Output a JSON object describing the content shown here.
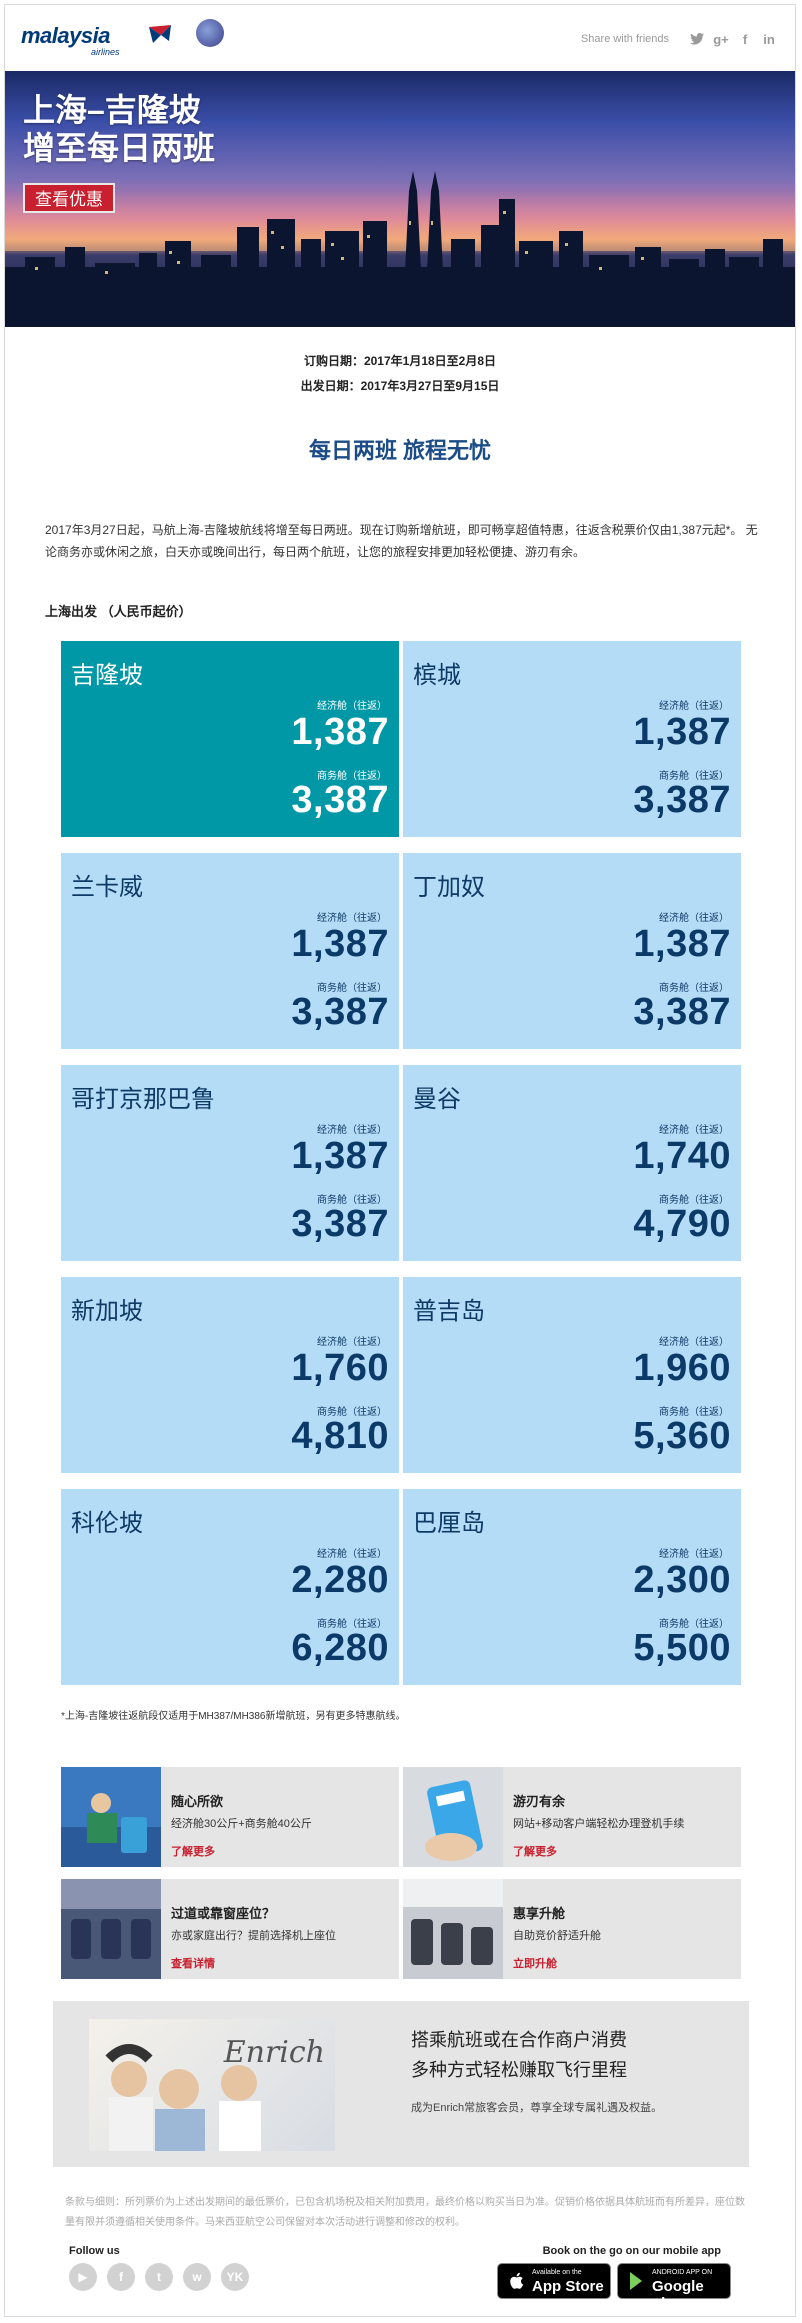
{
  "header": {
    "logo_text": "malaysia",
    "logo_sub": "airlines",
    "share_label": "Share with friends",
    "social_share": [
      "twitter-icon",
      "google-plus-icon",
      "facebook-icon",
      "linkedin-icon"
    ]
  },
  "hero": {
    "title_line1": "上海–吉隆坡",
    "title_line2": "增至每日两班",
    "cta_label": "查看优惠"
  },
  "dates": {
    "booking": "订购日期：2017年1月18日至2月8日",
    "travel": "出发日期：2017年3月27日至9月15日"
  },
  "tagline": "每日两班 旅程无忧",
  "intro": "2017年3月27日起，马航上海-吉隆坡航线将增至每日两班。现在订购新增航班，即可畅享超值特惠，往返含税票价仅由1,387元起*。 无论商务亦或休闲之旅，白天亦或晚间出行，每日两个航班，让您的旅程安排更加轻松便捷、游刃有余。",
  "origin": "上海出发 （人民币起价）",
  "fare_labels": {
    "economy": "经济舱（往返）",
    "business": "商务舱（往返）"
  },
  "fares": [
    {
      "city": "吉隆坡",
      "economy": "1,387",
      "business": "3,387",
      "highlight": true
    },
    {
      "city": "槟城",
      "economy": "1,387",
      "business": "3,387",
      "highlight": false
    },
    {
      "city": "兰卡威",
      "economy": "1,387",
      "business": "3,387",
      "highlight": false
    },
    {
      "city": "丁加奴",
      "economy": "1,387",
      "business": "3,387",
      "highlight": false
    },
    {
      "city": "哥打京那巴鲁",
      "economy": "1,387",
      "business": "3,387",
      "highlight": false
    },
    {
      "city": "曼谷",
      "economy": "1,740",
      "business": "4,790",
      "highlight": false
    },
    {
      "city": "新加坡",
      "economy": "1,760",
      "business": "4,810",
      "highlight": false
    },
    {
      "city": "普吉岛",
      "economy": "1,960",
      "business": "5,360",
      "highlight": false
    },
    {
      "city": "科伦坡",
      "economy": "2,280",
      "business": "6,280",
      "highlight": false
    },
    {
      "city": "巴厘岛",
      "economy": "2,300",
      "business": "5,500",
      "highlight": false
    }
  ],
  "footnote": "*上海-吉隆坡往返航段仅适用于MH387/MH386新增航班，另有更多特惠航线。",
  "services": [
    {
      "title": "随心所欲",
      "desc": "经济舱30公斤+商务舱40公斤",
      "link": "了解更多"
    },
    {
      "title": "游刃有余",
      "desc": "网站+移动客户端轻松办理登机手续",
      "link": "了解更多"
    },
    {
      "title": "过道或靠窗座位？",
      "desc": "亦或家庭出行？提前选择机上座位",
      "link": "查看详情"
    },
    {
      "title": "惠享升舱",
      "desc": "自助竞价舒适升舱",
      "link": "立即升舱"
    }
  ],
  "enrich": {
    "brand": "Enrich",
    "headline1": "搭乘航班或在合作商户消费",
    "headline2": "多种方式轻松赚取飞行里程",
    "sub": "成为Enrich常旅客会员，尊享全球专属礼遇及权益。"
  },
  "legal": "条款与细则：所列票价为上述出发期间的最低票价，已包含机场税及相关附加费用，最终价格以购买当日为准。促销价格依据具体航班而有所差异，座位数量有限并须遵循相关使用条件。马来西亚航空公司保留对本次活动进行调整和修改的权利。",
  "footer": {
    "follow_label": "Follow us",
    "social": [
      "youtube-icon",
      "facebook-icon",
      "twitter-icon",
      "weibo-icon",
      "youku-icon"
    ],
    "app_label": "Book on the go on our mobile app",
    "appstore_small": "Available on the",
    "appstore_big": "App Store",
    "googleplay_small": "ANDROID APP ON",
    "googleplay_big": "Google play"
  },
  "colors": {
    "navy": "#0b3a68",
    "highlight": "#0098a6",
    "fare_bg": "#b5dcf7",
    "red": "#c8202f"
  }
}
